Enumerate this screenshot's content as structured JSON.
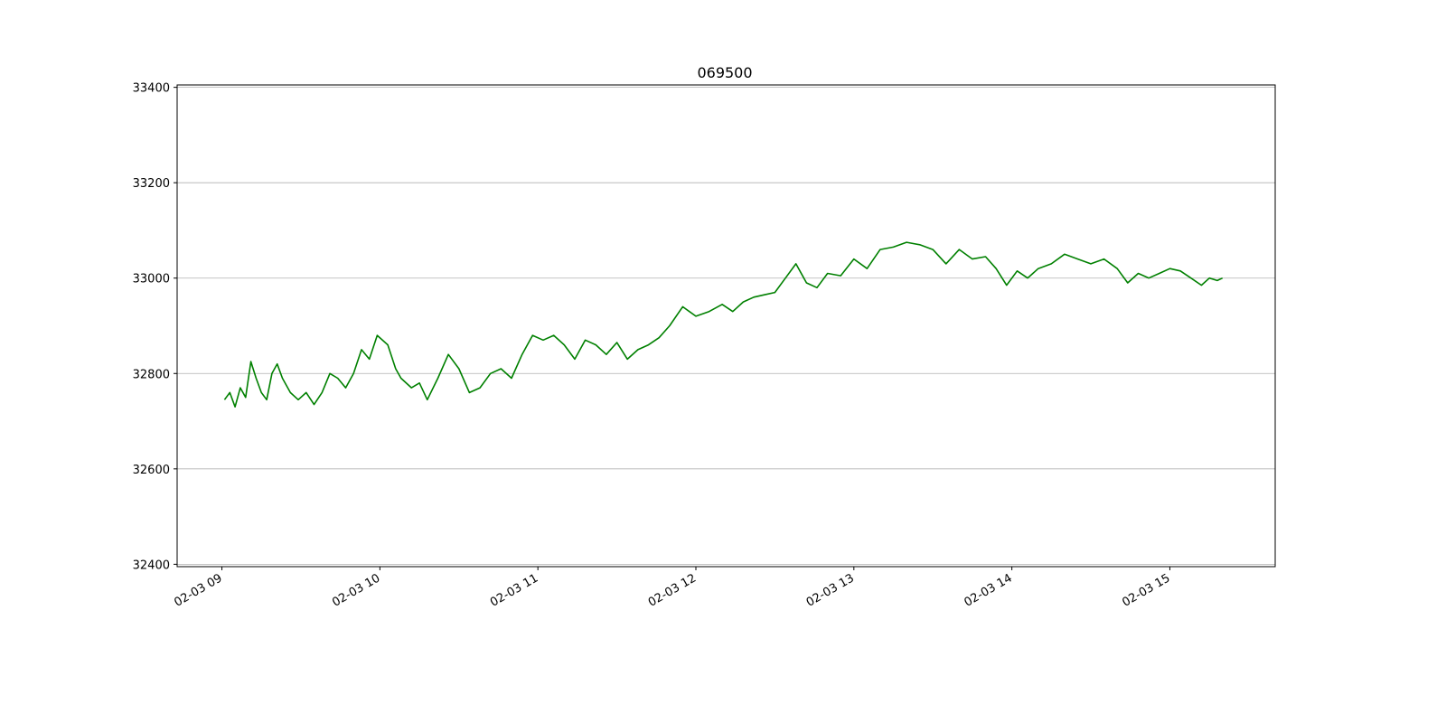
{
  "chart_data": {
    "type": "line",
    "title": "069500",
    "xlabel": "",
    "ylabel": "",
    "x_range": [
      "02-03 08:43",
      "02-03 15:40"
    ],
    "ylim": [
      32395,
      33405
    ],
    "y_ticks": [
      32400,
      32600,
      32800,
      33000,
      33200,
      33400
    ],
    "y_tick_labels": [
      "32400",
      "32600",
      "32800",
      "33000",
      "33200",
      "33400"
    ],
    "x_ticks": [
      "02-03 09:00",
      "02-03 10:00",
      "02-03 11:00",
      "02-03 12:00",
      "02-03 13:00",
      "02-03 14:00",
      "02-03 15:00"
    ],
    "x_tick_labels": [
      "02-03 09",
      "02-03 10",
      "02-03 11",
      "02-03 12",
      "02-03 13",
      "02-03 14",
      "02-03 15"
    ],
    "grid": "horizontal",
    "line_color": "#008000",
    "series": [
      {
        "x": [
          "02-03 09:01",
          "02-03 09:03",
          "02-03 09:05",
          "02-03 09:07",
          "02-03 09:09",
          "02-03 09:11",
          "02-03 09:13",
          "02-03 09:15",
          "02-03 09:17",
          "02-03 09:19",
          "02-03 09:21",
          "02-03 09:23",
          "02-03 09:26",
          "02-03 09:29",
          "02-03 09:32",
          "02-03 09:35",
          "02-03 09:38",
          "02-03 09:41",
          "02-03 09:44",
          "02-03 09:47",
          "02-03 09:50",
          "02-03 09:53",
          "02-03 09:56",
          "02-03 09:59",
          "02-03 10:03",
          "02-03 10:06",
          "02-03 10:08",
          "02-03 10:12",
          "02-03 10:15",
          "02-03 10:18",
          "02-03 10:22",
          "02-03 10:26",
          "02-03 10:30",
          "02-03 10:34",
          "02-03 10:38",
          "02-03 10:42",
          "02-03 10:46",
          "02-03 10:50",
          "02-03 10:54",
          "02-03 10:58",
          "02-03 11:02",
          "02-03 11:06",
          "02-03 11:10",
          "02-03 11:14",
          "02-03 11:18",
          "02-03 11:22",
          "02-03 11:26",
          "02-03 11:30",
          "02-03 11:34",
          "02-03 11:38",
          "02-03 11:42",
          "02-03 11:46",
          "02-03 11:50",
          "02-03 11:55",
          "02-03 12:00",
          "02-03 12:05",
          "02-03 12:10",
          "02-03 12:14",
          "02-03 12:18",
          "02-03 12:22",
          "02-03 12:26",
          "02-03 12:30",
          "02-03 12:34",
          "02-03 12:38",
          "02-03 12:42",
          "02-03 12:46",
          "02-03 12:50",
          "02-03 12:55",
          "02-03 13:00",
          "02-03 13:05",
          "02-03 13:10",
          "02-03 13:15",
          "02-03 13:20",
          "02-03 13:25",
          "02-03 13:30",
          "02-03 13:35",
          "02-03 13:40",
          "02-03 13:45",
          "02-03 13:50",
          "02-03 13:54",
          "02-03 13:58",
          "02-03 14:02",
          "02-03 14:06",
          "02-03 14:10",
          "02-03 14:15",
          "02-03 14:20",
          "02-03 14:25",
          "02-03 14:30",
          "02-03 14:35",
          "02-03 14:40",
          "02-03 14:44",
          "02-03 14:48",
          "02-03 14:52",
          "02-03 14:56",
          "02-03 15:00",
          "02-03 15:04",
          "02-03 15:08",
          "02-03 15:12",
          "02-03 15:15",
          "02-03 15:18",
          "02-03 15:20"
        ],
        "y": [
          32745,
          32760,
          32730,
          32770,
          32750,
          32825,
          32790,
          32760,
          32745,
          32800,
          32820,
          32790,
          32760,
          32745,
          32760,
          32735,
          32760,
          32800,
          32790,
          32770,
          32800,
          32850,
          32830,
          32880,
          32860,
          32810,
          32790,
          32770,
          32780,
          32745,
          32790,
          32840,
          32810,
          32760,
          32770,
          32800,
          32810,
          32790,
          32840,
          32880,
          32870,
          32880,
          32860,
          32830,
          32870,
          32860,
          32840,
          32865,
          32830,
          32850,
          32860,
          32875,
          32900,
          32940,
          32920,
          32930,
          32945,
          32930,
          32950,
          32960,
          32965,
          32970,
          33000,
          33030,
          32990,
          32980,
          33010,
          33005,
          33040,
          33020,
          33060,
          33065,
          33075,
          33070,
          33060,
          33030,
          33060,
          33040,
          33045,
          33020,
          32985,
          33015,
          33000,
          33020,
          33030,
          33050,
          33040,
          33030,
          33040,
          33020,
          32990,
          33010,
          33000,
          33010,
          33020,
          33015,
          33000,
          32985,
          33000,
          32995,
          33000
        ]
      }
    ]
  }
}
